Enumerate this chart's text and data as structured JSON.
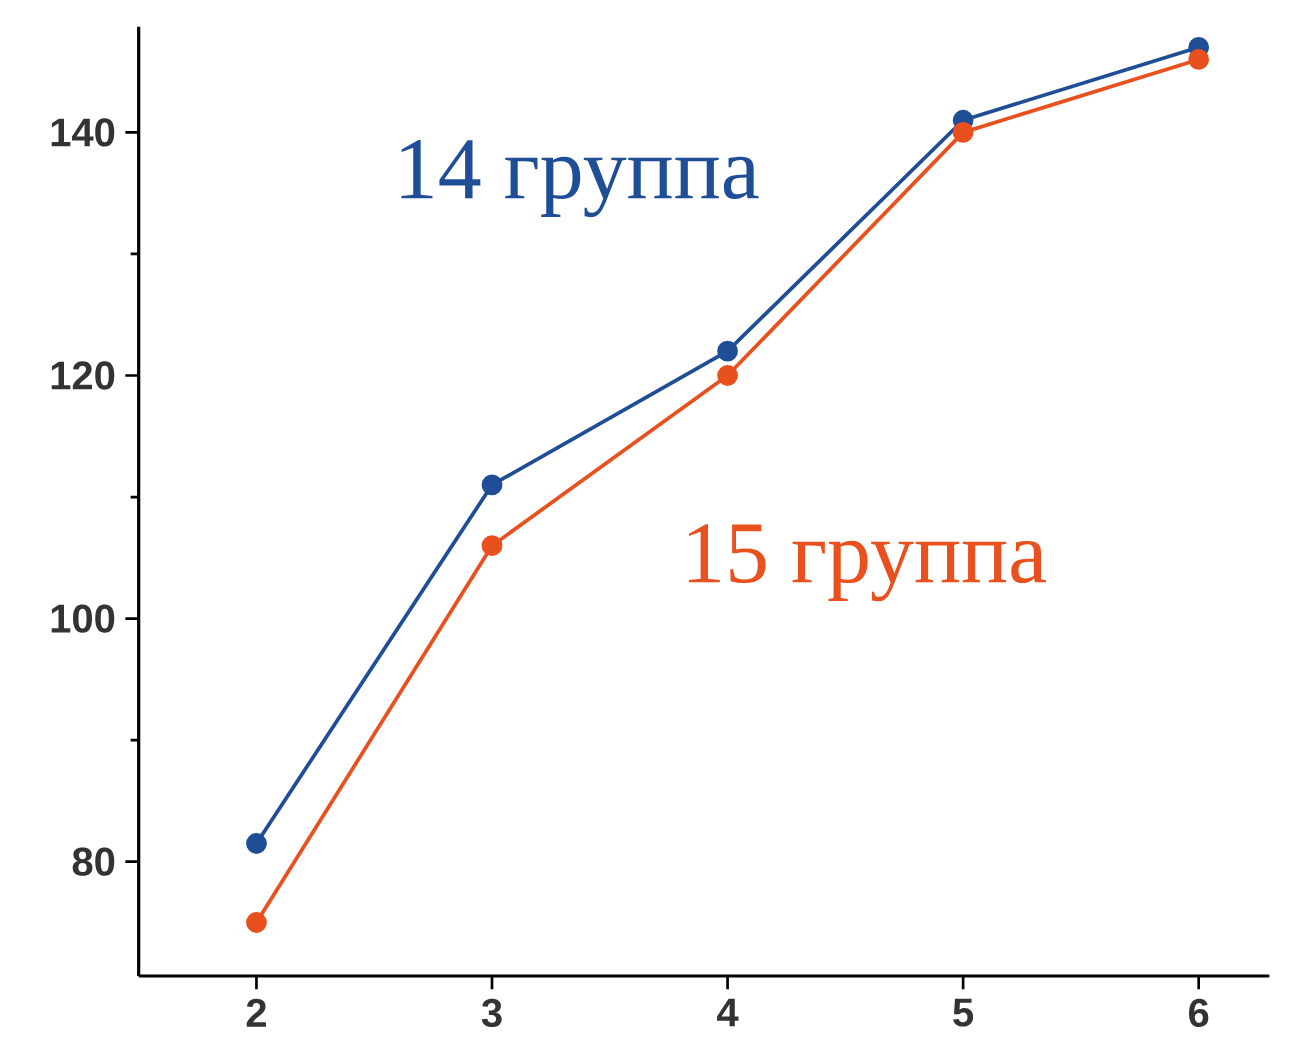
{
  "chart_data": {
    "type": "line",
    "xlim": [
      1.5,
      6.3
    ],
    "ylim": [
      70.6,
      148.7
    ],
    "xticks": [
      2,
      3,
      4,
      5,
      6
    ],
    "yticks": [
      80,
      100,
      120,
      140
    ],
    "marker": "circle",
    "grid": false,
    "series": [
      {
        "name": "14 группа",
        "color": "#1f4e96",
        "x": [
          2,
          3,
          4,
          5,
          6
        ],
        "values": [
          81.5,
          111,
          122,
          141,
          147
        ]
      },
      {
        "name": "15 группа",
        "color": "#e8501e",
        "x": [
          2,
          3,
          4,
          5,
          6
        ],
        "values": [
          75,
          106,
          120,
          140,
          146
        ]
      }
    ]
  }
}
